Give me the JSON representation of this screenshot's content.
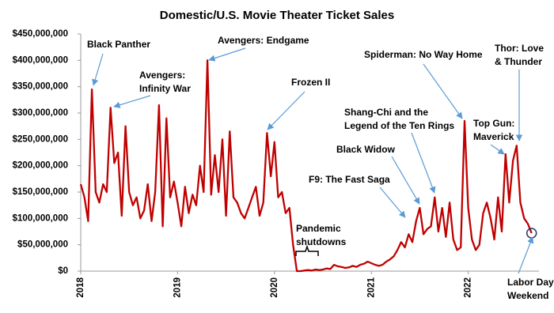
{
  "chart_data": {
    "type": "line",
    "title": "Domestic/U.S. Movie Theater Ticket Sales",
    "color": "#c00000",
    "x": [
      2018,
      2018.038,
      2018.077,
      2018.115,
      2018.154,
      2018.192,
      2018.231,
      2018.269,
      2018.308,
      2018.346,
      2018.385,
      2018.423,
      2018.462,
      2018.5,
      2018.538,
      2018.577,
      2018.615,
      2018.654,
      2018.692,
      2018.731,
      2018.769,
      2018.808,
      2018.846,
      2018.885,
      2018.923,
      2018.962,
      2019,
      2019.038,
      2019.077,
      2019.115,
      2019.154,
      2019.192,
      2019.231,
      2019.269,
      2019.308,
      2019.346,
      2019.385,
      2019.423,
      2019.462,
      2019.5,
      2019.538,
      2019.577,
      2019.615,
      2019.654,
      2019.692,
      2019.731,
      2019.769,
      2019.808,
      2019.846,
      2019.885,
      2019.923,
      2019.962,
      2020,
      2020.038,
      2020.077,
      2020.115,
      2020.154,
      2020.192,
      2020.231,
      2020.269,
      2020.308,
      2020.346,
      2020.385,
      2020.423,
      2020.462,
      2020.5,
      2020.538,
      2020.577,
      2020.615,
      2020.654,
      2020.692,
      2020.731,
      2020.769,
      2020.808,
      2020.846,
      2020.885,
      2020.923,
      2020.962,
      2021,
      2021.038,
      2021.077,
      2021.115,
      2021.154,
      2021.192,
      2021.231,
      2021.269,
      2021.308,
      2021.346,
      2021.385,
      2021.423,
      2021.462,
      2021.5,
      2021.538,
      2021.577,
      2021.615,
      2021.654,
      2021.692,
      2021.731,
      2021.769,
      2021.808,
      2021.846,
      2021.885,
      2021.923,
      2021.962,
      2022,
      2022.038,
      2022.077,
      2022.115,
      2022.154,
      2022.192,
      2022.231,
      2022.269,
      2022.308,
      2022.346,
      2022.385,
      2022.423,
      2022.462,
      2022.5,
      2022.538,
      2022.577,
      2022.615,
      2022.654
    ],
    "values": [
      165000000,
      140000000,
      95000000,
      345000000,
      150000000,
      130000000,
      165000000,
      150000000,
      310000000,
      205000000,
      225000000,
      105000000,
      275000000,
      150000000,
      125000000,
      140000000,
      100000000,
      115000000,
      165000000,
      95000000,
      150000000,
      315000000,
      85000000,
      290000000,
      140000000,
      170000000,
      130000000,
      85000000,
      160000000,
      110000000,
      145000000,
      125000000,
      200000000,
      150000000,
      400000000,
      145000000,
      220000000,
      150000000,
      250000000,
      105000000,
      265000000,
      140000000,
      130000000,
      110000000,
      100000000,
      120000000,
      140000000,
      160000000,
      105000000,
      130000000,
      262000000,
      180000000,
      245000000,
      140000000,
      150000000,
      110000000,
      120000000,
      50000000,
      0,
      0,
      1000000,
      2000000,
      1000000,
      3000000,
      2000000,
      3000000,
      5000000,
      4000000,
      12000000,
      9000000,
      8000000,
      6000000,
      7000000,
      10000000,
      8000000,
      12000000,
      14000000,
      18000000,
      15000000,
      12000000,
      10000000,
      12000000,
      18000000,
      22000000,
      28000000,
      40000000,
      55000000,
      45000000,
      70000000,
      55000000,
      95000000,
      120000000,
      70000000,
      80000000,
      85000000,
      140000000,
      75000000,
      120000000,
      65000000,
      130000000,
      60000000,
      40000000,
      45000000,
      285000000,
      120000000,
      60000000,
      40000000,
      50000000,
      110000000,
      130000000,
      100000000,
      60000000,
      140000000,
      75000000,
      222000000,
      130000000,
      210000000,
      238000000,
      130000000,
      100000000,
      90000000,
      72000000
    ],
    "xlim": [
      2018,
      2022.73
    ],
    "xticks": [
      2018,
      2019,
      2020,
      2021,
      2022
    ],
    "ylim": [
      0,
      450000000
    ],
    "yticks": [
      {
        "value": 0,
        "label": "$0"
      },
      {
        "value": 50000000,
        "label": "$50,000,000"
      },
      {
        "value": 100000000,
        "label": "$100,000,000"
      },
      {
        "value": 150000000,
        "label": "$150,000,000"
      },
      {
        "value": 200000000,
        "label": "$200,000,000"
      },
      {
        "value": 250000000,
        "label": "$250,000,000"
      },
      {
        "value": 300000000,
        "label": "$300,000,000"
      },
      {
        "value": 350000000,
        "label": "$350,000,000"
      },
      {
        "value": 400000000,
        "label": "$400,000,000"
      },
      {
        "value": 450000000,
        "label": "$450,000,000"
      }
    ],
    "grid": false,
    "annotations": [
      {
        "lines": [
          "Black Panther"
        ]
      },
      {
        "lines": [
          "Avengers:",
          "Infinity War"
        ]
      },
      {
        "lines": [
          "Avengers: Endgame"
        ]
      },
      {
        "lines": [
          "Frozen II"
        ]
      },
      {
        "lines": [
          "Spiderman: No Way Home"
        ]
      },
      {
        "lines": [
          "Thor: Love",
          "& Thunder"
        ]
      },
      {
        "lines": [
          "Shang-Chi and the",
          "Legend of the Ten Rings"
        ]
      },
      {
        "lines": [
          "Top Gun:",
          "Maverick"
        ]
      },
      {
        "lines": [
          "Black Widow"
        ]
      },
      {
        "lines": [
          "F9: The Fast Saga"
        ]
      },
      {
        "lines": [
          "Pandemic",
          "shutdowns"
        ]
      },
      {
        "lines": [
          "Labor Day",
          "Weekend"
        ]
      }
    ]
  }
}
